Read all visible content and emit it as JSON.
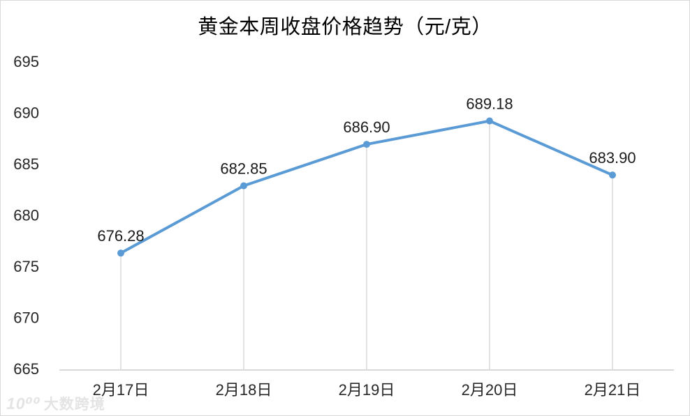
{
  "title": "黄金本周收盘价格趋势（元/克）",
  "watermark": {
    "logo": "10⁰⁰",
    "text": "大数跨境"
  },
  "colors": {
    "line": "#5b9bd5",
    "marker": "#5b9bd5",
    "axis": "#d9d9d9",
    "drop_line": "#d9d9d9",
    "text": "#262626",
    "title_text": "#000000",
    "watermark_text": "#e4e4e4"
  },
  "chart_data": {
    "type": "line",
    "title": "黄金本周收盘价格趋势（元/克）",
    "categories": [
      "2月17日",
      "2月18日",
      "2月19日",
      "2月20日",
      "2月21日"
    ],
    "values": [
      676.28,
      682.85,
      686.9,
      689.18,
      683.9
    ],
    "data_labels": [
      "676.28",
      "682.85",
      "686.90",
      "689.18",
      "683.90"
    ],
    "y_ticks": [
      665,
      670,
      675,
      680,
      685,
      690,
      695
    ],
    "ylim": [
      665,
      695
    ],
    "xlabel": "",
    "ylabel": "",
    "grid": false,
    "drop_lines": true,
    "legend_position": "none",
    "marker": "circle"
  }
}
